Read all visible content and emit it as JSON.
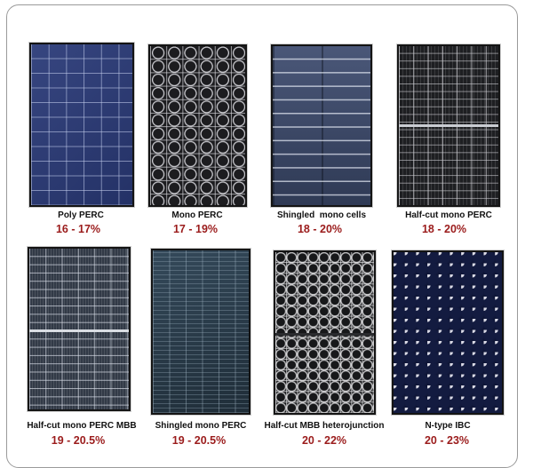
{
  "panels": [
    {
      "name": "Poly PERC",
      "efficiency": "16 - 17%"
    },
    {
      "name": "Mono PERC",
      "efficiency": "17 - 19%"
    },
    {
      "name": "Shingled  mono cells",
      "efficiency": "18 - 20%"
    },
    {
      "name": "Half-cut mono PERC",
      "efficiency": "18 - 20%"
    },
    {
      "name": "Half-cut mono PERC MBB",
      "efficiency": "19 - 20.5%"
    },
    {
      "name": "Shingled mono PERC",
      "efficiency": "19 - 20.5%"
    },
    {
      "name": "Half-cut MBB heterojunction",
      "efficiency": "20 - 22%"
    },
    {
      "name": "N-type IBC",
      "efficiency": "20 - 23%"
    }
  ],
  "colors": {
    "efficiency_text": "#9b1c1c",
    "label_text": "#111111",
    "frame_border": "#9a9a9a"
  }
}
